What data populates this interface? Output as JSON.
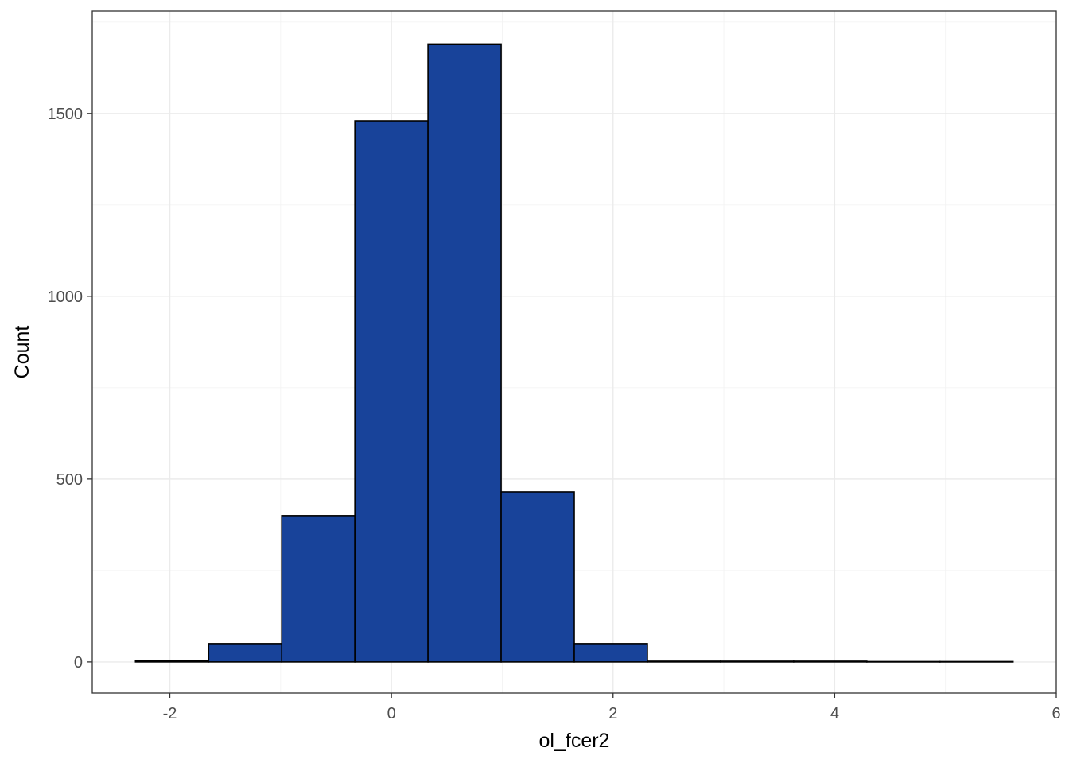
{
  "chart_data": {
    "type": "bar",
    "subtype": "histogram",
    "title": "",
    "xlabel": "ol_fcer2",
    "ylabel": "Count",
    "bar_color": "#18439A",
    "bar_outline_color": "#000000",
    "grid": true,
    "legend": "none",
    "xlim": [
      -2.7,
      6.0
    ],
    "ylim": [
      -85,
      1780
    ],
    "x_ticks": [
      -2,
      0,
      2,
      4,
      6
    ],
    "x_tick_labels": [
      "-2",
      "0",
      "2",
      "4",
      "6"
    ],
    "y_ticks": [
      0,
      500,
      1000,
      1500
    ],
    "y_tick_labels": [
      "0",
      "500",
      "1000",
      "1500"
    ],
    "bins": [
      {
        "x0": -2.31,
        "x1": -1.65,
        "count": 3
      },
      {
        "x0": -1.65,
        "x1": -0.99,
        "count": 50
      },
      {
        "x0": -0.99,
        "x1": -0.33,
        "count": 400
      },
      {
        "x0": -0.33,
        "x1": 0.33,
        "count": 1480
      },
      {
        "x0": 0.33,
        "x1": 0.99,
        "count": 1690
      },
      {
        "x0": 0.99,
        "x1": 1.65,
        "count": 465
      },
      {
        "x0": 1.65,
        "x1": 2.31,
        "count": 50
      },
      {
        "x0": 2.31,
        "x1": 2.97,
        "count": 2
      },
      {
        "x0": 2.97,
        "x1": 3.63,
        "count": 2
      },
      {
        "x0": 3.63,
        "x1": 4.29,
        "count": 2
      },
      {
        "x0": 4.29,
        "x1": 4.95,
        "count": 1
      },
      {
        "x0": 4.95,
        "x1": 5.61,
        "count": 1
      }
    ]
  }
}
